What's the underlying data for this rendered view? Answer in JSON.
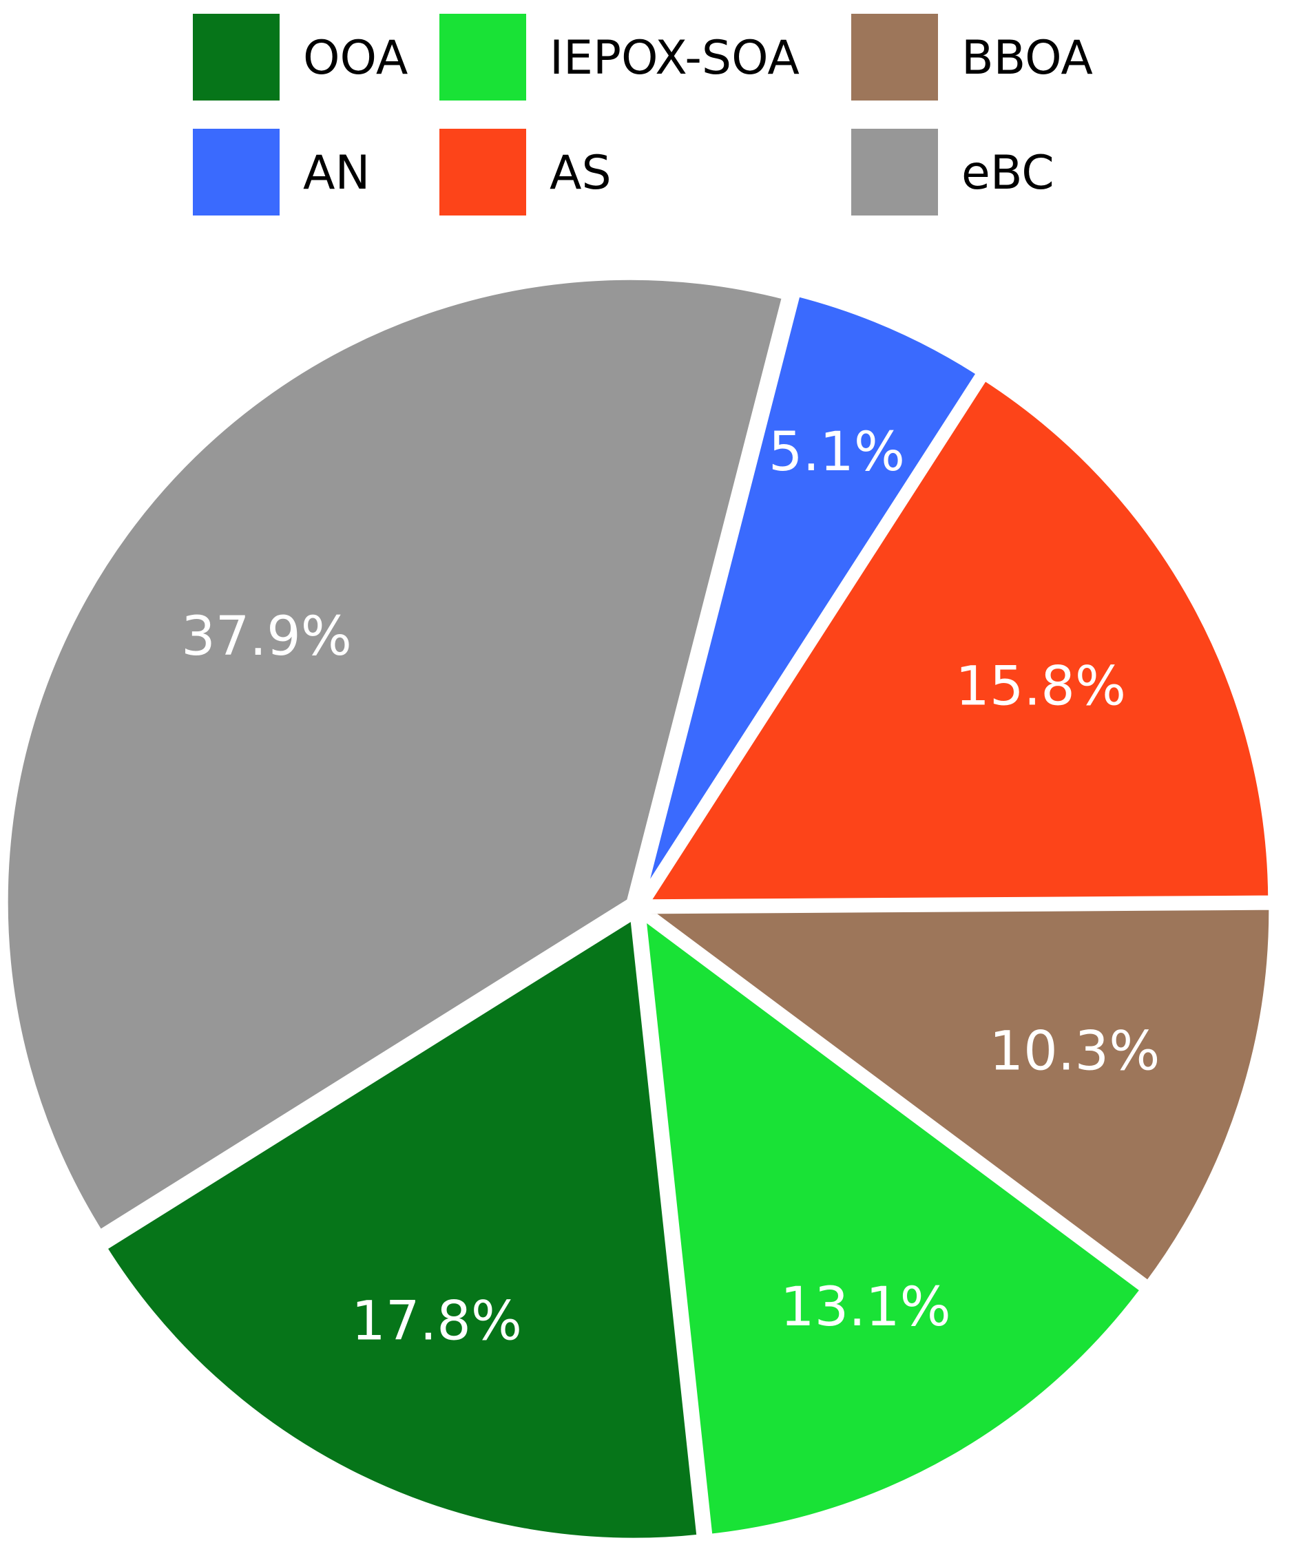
{
  "chart_data": {
    "type": "pie",
    "title": "",
    "legend_placement": "top",
    "legend": [
      {
        "name": "OOA",
        "color": "#067519"
      },
      {
        "name": "IEPOX-SOA",
        "color": "#19E236"
      },
      {
        "name": "BBOA",
        "color": "#9D765A"
      },
      {
        "name": "AN",
        "color": "#3A6AFE"
      },
      {
        "name": "AS",
        "color": "#FD4419"
      },
      {
        "name": "eBC",
        "color": "#979797"
      }
    ],
    "slices": [
      {
        "name": "AN",
        "value": 5.1,
        "label": "5.1%",
        "color": "#3A6AFE"
      },
      {
        "name": "AS",
        "value": 15.8,
        "label": "15.8%",
        "color": "#FD4419"
      },
      {
        "name": "BBOA",
        "value": 10.3,
        "label": "10.3%",
        "color": "#9D765A"
      },
      {
        "name": "IEPOX-SOA",
        "value": 13.1,
        "label": "13.1%",
        "color": "#19E236"
      },
      {
        "name": "OOA",
        "value": 17.8,
        "label": "17.8%",
        "color": "#067519"
      },
      {
        "name": "eBC",
        "value": 37.9,
        "label": "37.9%",
        "color": "#979797"
      }
    ]
  }
}
